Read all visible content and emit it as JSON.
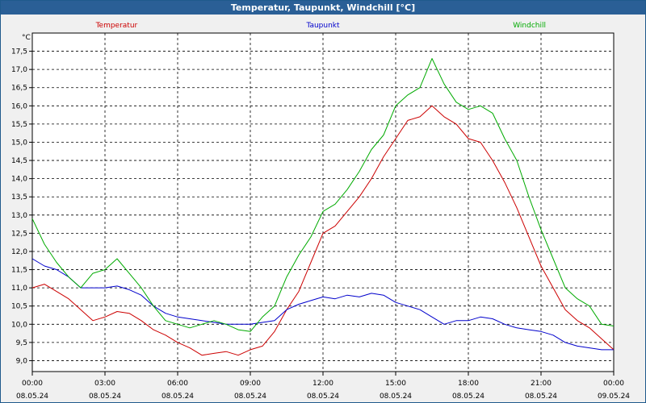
{
  "window": {
    "title": "Temperatur, Taupunkt, Windchill [°C]"
  },
  "chart_data": {
    "type": "line",
    "title": "Temperatur, Taupunkt, Windchill [°C]",
    "ylabel": "°C",
    "xlabel": "",
    "ylim": [
      8.7,
      18.0
    ],
    "yticks": [
      9.0,
      9.5,
      10.0,
      10.5,
      11.0,
      11.5,
      12.0,
      12.5,
      13.0,
      13.5,
      14.0,
      14.5,
      15.0,
      15.5,
      16.0,
      16.5,
      17.0,
      17.5
    ],
    "ytick_labels": [
      "9,0",
      "9,5",
      "10,0",
      "10,5",
      "11,0",
      "11,5",
      "12,0",
      "12,5",
      "13,0",
      "13,5",
      "14,0",
      "14,5",
      "15,0",
      "15,5",
      "16,0",
      "16,5",
      "17,0",
      "17,5"
    ],
    "xlim": [
      0,
      24
    ],
    "xticks": [
      {
        "time": "00:00",
        "date": "08.05.24"
      },
      {
        "time": "03:00",
        "date": "08.05.24"
      },
      {
        "time": "06:00",
        "date": "08.05.24"
      },
      {
        "time": "09:00",
        "date": "08.05.24"
      },
      {
        "time": "12:00",
        "date": "08.05.24"
      },
      {
        "time": "15:00",
        "date": "08.05.24"
      },
      {
        "time": "18:00",
        "date": "08.05.24"
      },
      {
        "time": "21:00",
        "date": "08.05.24"
      },
      {
        "time": "00:00",
        "date": "09.05.24"
      }
    ],
    "grid": true,
    "legend_position": "top",
    "series": [
      {
        "name": "Temperatur",
        "color": "#cc0000",
        "x": [
          0,
          0.5,
          1,
          1.5,
          2,
          2.5,
          3,
          3.5,
          4,
          4.5,
          5,
          5.5,
          6,
          6.5,
          7,
          7.5,
          8,
          8.5,
          9,
          9.5,
          10,
          10.5,
          11,
          11.5,
          12,
          12.5,
          13,
          13.5,
          14,
          14.5,
          15,
          15.5,
          16,
          16.5,
          17,
          17.5,
          18,
          18.5,
          19,
          19.5,
          20,
          20.5,
          21,
          21.5,
          22,
          22.5,
          23,
          23.5,
          24
        ],
        "values": [
          11.0,
          11.1,
          10.9,
          10.7,
          10.4,
          10.1,
          10.2,
          10.35,
          10.3,
          10.1,
          9.85,
          9.7,
          9.5,
          9.35,
          9.15,
          9.2,
          9.25,
          9.15,
          9.3,
          9.4,
          9.8,
          10.4,
          10.9,
          11.7,
          12.5,
          12.7,
          13.1,
          13.5,
          14.0,
          14.6,
          15.1,
          15.6,
          15.7,
          16.0,
          15.7,
          15.5,
          15.1,
          15.0,
          14.5,
          13.9,
          13.2,
          12.4,
          11.6,
          11.0,
          10.4,
          10.1,
          9.9,
          9.6,
          9.3
        ]
      },
      {
        "name": "Taupunkt",
        "color": "#0000cc",
        "x": [
          0,
          0.5,
          1,
          1.5,
          2,
          2.5,
          3,
          3.5,
          4,
          4.5,
          5,
          5.5,
          6,
          6.5,
          7,
          7.5,
          8,
          8.5,
          9,
          9.5,
          10,
          10.5,
          11,
          11.5,
          12,
          12.5,
          13,
          13.5,
          14,
          14.5,
          15,
          15.5,
          16,
          16.5,
          17,
          17.5,
          18,
          18.5,
          19,
          19.5,
          20,
          20.5,
          21,
          21.5,
          22,
          22.5,
          23,
          23.5,
          24
        ],
        "values": [
          11.8,
          11.6,
          11.5,
          11.3,
          11.0,
          11.0,
          11.0,
          11.05,
          10.95,
          10.8,
          10.5,
          10.3,
          10.2,
          10.15,
          10.1,
          10.05,
          10.0,
          10.0,
          10.0,
          10.05,
          10.1,
          10.4,
          10.55,
          10.65,
          10.75,
          10.7,
          10.8,
          10.75,
          10.85,
          10.8,
          10.6,
          10.5,
          10.4,
          10.2,
          10.0,
          10.1,
          10.1,
          10.2,
          10.15,
          10.0,
          9.9,
          9.85,
          9.8,
          9.7,
          9.5,
          9.4,
          9.35,
          9.3,
          9.3
        ]
      },
      {
        "name": "Windchill",
        "color": "#00aa00",
        "x": [
          0,
          0.5,
          1,
          1.5,
          2,
          2.5,
          3,
          3.5,
          4,
          4.5,
          5,
          5.5,
          6,
          6.5,
          7,
          7.5,
          8,
          8.5,
          9,
          9.5,
          10,
          10.5,
          11,
          11.5,
          12,
          12.5,
          13,
          13.5,
          14,
          14.5,
          15,
          15.5,
          16,
          16.5,
          17,
          17.5,
          18,
          18.5,
          19,
          19.5,
          20,
          20.5,
          21,
          21.5,
          22,
          22.5,
          23,
          23.5,
          24
        ],
        "values": [
          12.9,
          12.2,
          11.7,
          11.3,
          11.0,
          11.4,
          11.5,
          11.8,
          11.4,
          11.0,
          10.5,
          10.1,
          10.0,
          9.9,
          10.0,
          10.1,
          10.0,
          9.85,
          9.8,
          10.2,
          10.5,
          11.3,
          11.9,
          12.4,
          13.1,
          13.3,
          13.7,
          14.2,
          14.8,
          15.2,
          16.0,
          16.3,
          16.5,
          17.3,
          16.6,
          16.1,
          15.9,
          16.0,
          15.8,
          15.1,
          14.5,
          13.5,
          12.6,
          11.8,
          11.0,
          10.7,
          10.5,
          10.0,
          9.95
        ]
      }
    ]
  }
}
